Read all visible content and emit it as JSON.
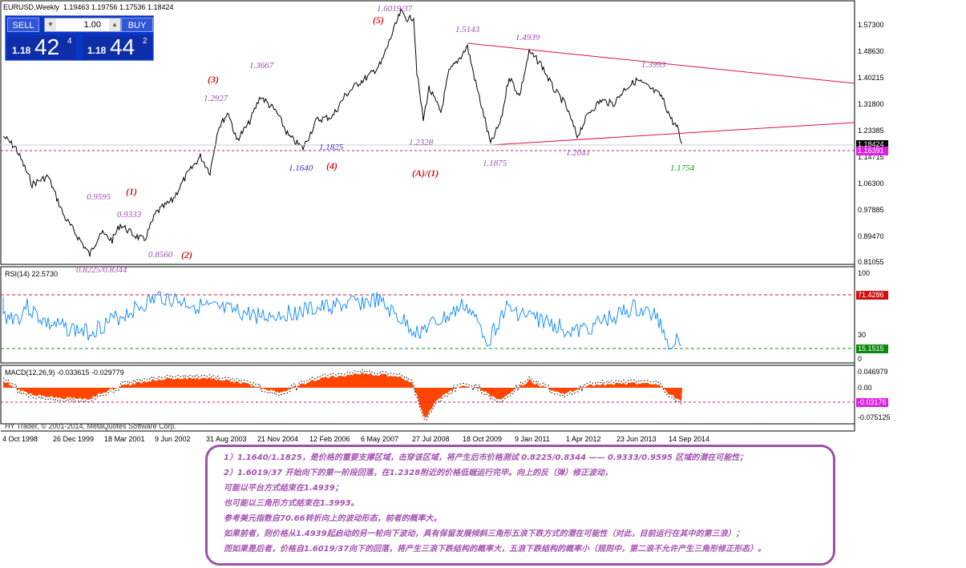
{
  "symbol_title": "EURUSD,Weekly",
  "ohlc": "1.19463 1.19756 1.17536 1.18424",
  "trade_panel": {
    "sell_label": "SELL",
    "buy_label": "BUY",
    "quantity": "1.00",
    "sell_small": "1.18",
    "sell_big": "42",
    "sell_pip": "4",
    "buy_small": "1.18",
    "buy_big": "44",
    "buy_pip": "2"
  },
  "price_axis": [
    "1.57300",
    "1.48630",
    "1.40215",
    "1.31800",
    "1.23385",
    "1.14715",
    "1.06300",
    "0.97885",
    "0.89470",
    "0.81055"
  ],
  "price_tags": {
    "current": "1.18424",
    "line": "1.16391"
  },
  "rsi": {
    "title": "RSI(14) 22.5730",
    "level_100": "100",
    "level_30": "30",
    "level_0": "0",
    "tag_upper": "71.4286",
    "tag_lower": "15.1515"
  },
  "macd": {
    "title": "MACD(12,26,9) -0.033615 -0.029779",
    "tick_top": "0.046979",
    "tick_zero": "0.00",
    "tick_bottom": "-0.075125",
    "tag": "-0.03176"
  },
  "copyright": "HY Trader, © 2001-2014, MetaQuotes Software Corp.",
  "time_axis": [
    "4 Oct 1998",
    "26 Dec 1999",
    "18 Mar 2001",
    "9 Jun 2002",
    "31 Aug 2003",
    "21 Nov 2004",
    "12 Feb 2006",
    "6 May 2007",
    "27 Jul 2008",
    "18 Oct 2009",
    "9 Jan 2011",
    "1 Apr 2012",
    "23 Jun 2013",
    "14 Sep 2014"
  ],
  "annotations": {
    "w5": "(5)",
    "w3": "(3)",
    "w4": "(4)",
    "w1": "(1)",
    "w2": "(2)",
    "wA1": "(A)/(1)",
    "p16019": "1.6019/37",
    "p15143": "1.5143",
    "p14939": "1.4939",
    "p13993": "1.3993",
    "p13667": "1.3667",
    "p12927": "1.2927",
    "p11825": "1.1825",
    "p11640": "1.1640",
    "p12328": "1.2328",
    "p11875": "1.1875",
    "p12041": "1.2041",
    "p11754": "1.1754",
    "p09595": "0.9595",
    "p09333": "0.9333",
    "p08560": "0.8560",
    "p08225": "0.8225/0.8344"
  },
  "colors": {
    "price_line": "#000000",
    "rsi_line": "#1e90ff",
    "macd_hist": "#ff4500",
    "trendline": "#dc143c",
    "note_text": "#a354b0",
    "note_border": "#9e52a8"
  },
  "note_lines": [
    "1）1.1640/1.1825，是价格的重要支撑区域，击穿该区域，将产生后市价格测试 0.8225/0.8344 —— 0.9333/0.9595 区域的潜在可能性；",
    "2）1.6019/37 开始向下的第一阶段回落，在1.2328附近的价格低端运行完毕。向上的反（弹）修正波动，",
    "可能以平台方式结束在1.4939；",
    "也可能以三角形方式结束在1.3993。",
    "参考美元指数自70.66转折向上的波动形态，前者的概率大。",
    "如果前者，则价格从1.4939起启动的另一轮向下波动，具有保留发展倾斜三角形五浪下跌方式的潜在可能性（对此，目前运行在其中的第三浪）；",
    "而如果是后者，价格自1.6019/37向下的回落，将产生三浪下跌结构的概率大，五浪下跌结构的概率小（规则中，第二浪不允许产生三角形修正形态）。"
  ]
}
